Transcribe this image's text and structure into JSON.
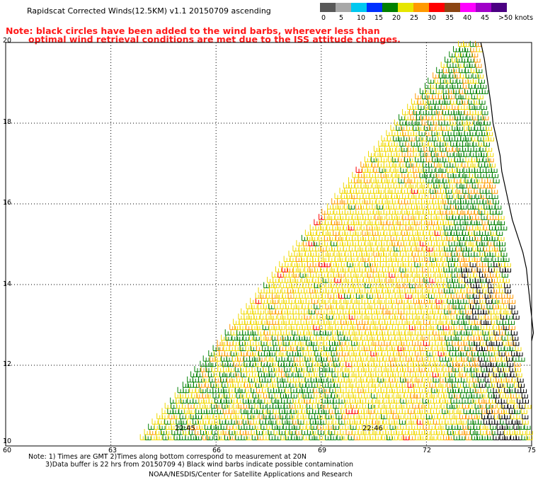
{
  "header": {
    "title": "Rapidscat Corrected Winds(12.5KM) v1.1 20150709 ascending",
    "note_line1": "Note: black circles have been added to the wind barbs, wherever less than",
    "note_line2": "optimal wind retrieval conditions are met due to the ISS attitude changes."
  },
  "color_scale": {
    "unit_label": ">50 knots",
    "ticks": [
      "0",
      "5",
      "10",
      "15",
      "20",
      "25",
      "30",
      "35",
      "40",
      "45"
    ],
    "colors": [
      "#595959",
      "#a8a8a8",
      "#00c8f0",
      "#0030ff",
      "#008000",
      "#e6e600",
      "#ff9900",
      "#ff0000",
      "#8b4513",
      "#ff00ff",
      "#a000c8",
      "#4b0082"
    ]
  },
  "axes": {
    "lat_labels": [
      "20",
      "18",
      "16",
      "14",
      "12",
      "10"
    ],
    "lon_labels": [
      "60",
      "63",
      "66",
      "69",
      "72",
      "75"
    ]
  },
  "time_labels": [
    "22:45",
    "22:46"
  ],
  "footer": {
    "line1": "Note: 1) Times are GMT 2)Times along bottom correspond to measurement at 20N",
    "line2": "3)Data buffer is 22 hrs from 20150709 4) Black wind barbs indicate possible contamination",
    "line3": "NOAA/NESDIS/Center for Satellite Applications and Research"
  }
}
